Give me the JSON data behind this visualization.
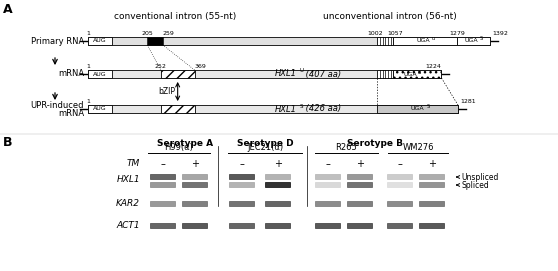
{
  "panel_A_label": "A",
  "panel_B_label": "B",
  "conv_intron_label": "conventional intron (55-nt)",
  "unconv_intron_label": "unconventional intron (56-nt)",
  "primary_rna_label": "Primary RNA",
  "mrna_label": "mRNA",
  "upr_label": "UPR-induced",
  "upr_label2": "mRNA",
  "hxl1u_label": "HXL1",
  "hxl1u_super": "U",
  "hxl1u_rest": " (407 aa)",
  "hxl1s_label": "HXL1",
  "hxl1s_super": "S",
  "hxl1s_rest": " (426 aa)",
  "bzip_label": "bZIP",
  "aug_label": "AUG",
  "uga_label": "UGA",
  "serotype_a_label": "Serotype A",
  "serotype_d_label": "Serotype D",
  "serotype_b_label": "Serotype B",
  "h99_label": "H99(α)",
  "jec21_label": "JEC21(α)",
  "r265_label": "R265",
  "wm276_label": "WM276",
  "tm_label": "TM",
  "hxl1_gene": "HXL1",
  "kar2_gene": "KAR2",
  "act1_gene": "ACT1",
  "unspliced_label": "Unspliced",
  "spliced_label": "Spliced",
  "plus": "+",
  "minus": "–",
  "bg_color": "#ffffff"
}
